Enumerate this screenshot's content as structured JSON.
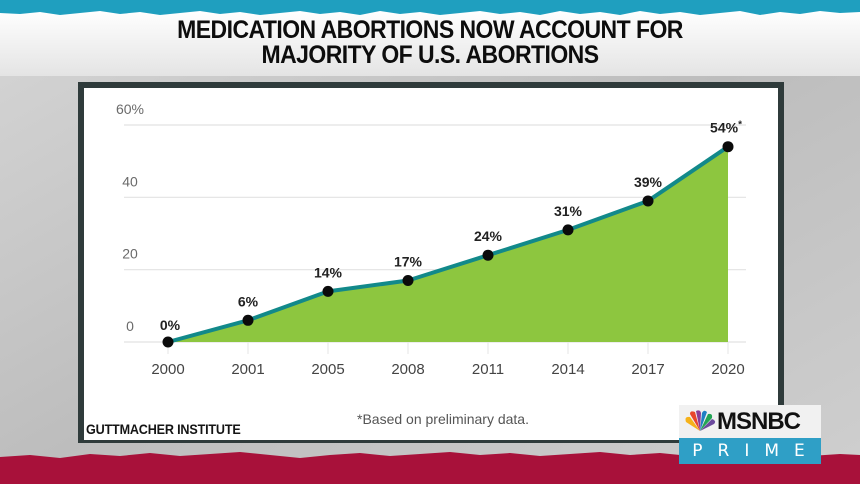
{
  "headline": {
    "line1": "MEDICATION ABORTIONS NOW ACCOUNT FOR",
    "line2": "MAJORITY OF U.S. ABORTIONS"
  },
  "source": "GUTTMACHER INSTITUTE",
  "network": {
    "name": "MSNBC",
    "sub": "PRIME",
    "bar_color": "#2f9fc6"
  },
  "colors": {
    "top_band": "#1f9fbf",
    "bottom_band": "#a8113a",
    "line": "#12898a",
    "fill": "#8dc63f",
    "frame": "#2f3b3b"
  },
  "chart_data": {
    "type": "area",
    "title": "",
    "categories": [
      "2000",
      "2001",
      "2005",
      "2008",
      "2011",
      "2014",
      "2017",
      "2020"
    ],
    "values": [
      0,
      6,
      14,
      17,
      24,
      31,
      39,
      54
    ],
    "data_labels": [
      "0%",
      "6%",
      "14%",
      "17%",
      "24%",
      "31%",
      "39%",
      "54%*"
    ],
    "yticks": [
      0,
      20,
      40,
      60
    ],
    "ytick_labels": [
      "0",
      "20",
      "40",
      "60%"
    ],
    "ylim": [
      0,
      60
    ],
    "xlabel": "",
    "ylabel": "",
    "grid": true,
    "legend": "none",
    "footnote": "*Based on preliminary data."
  }
}
